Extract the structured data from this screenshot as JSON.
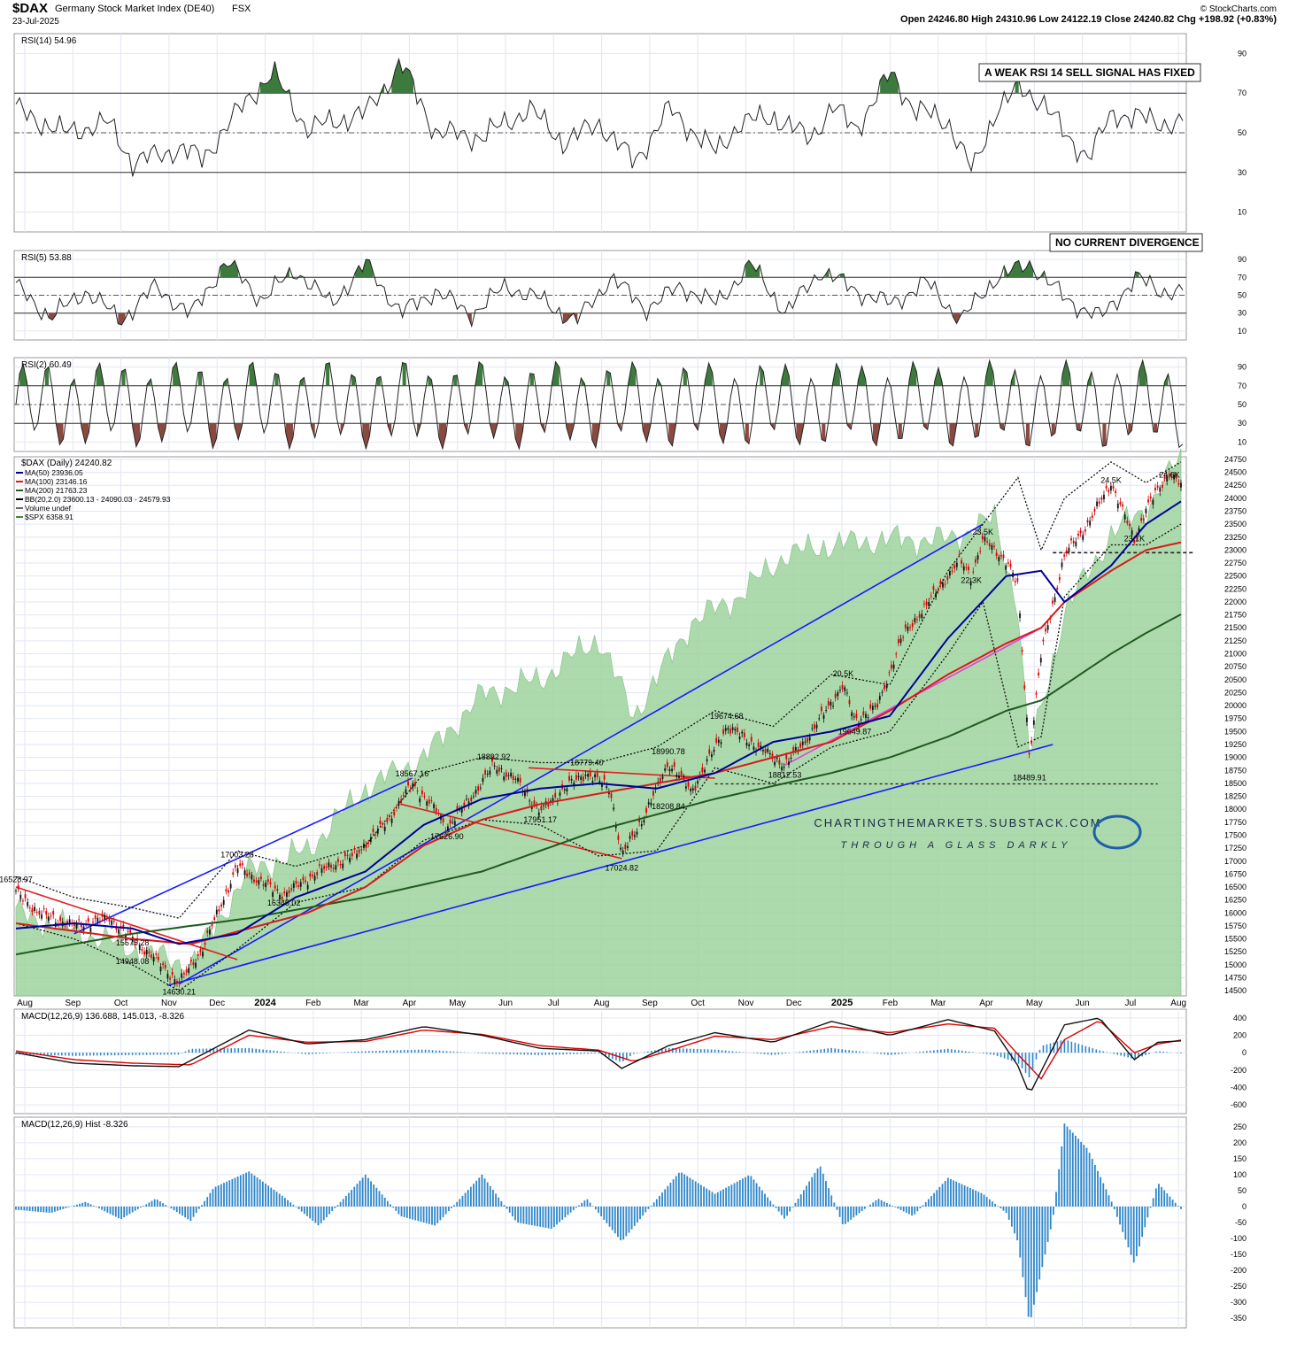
{
  "header": {
    "symbol": "$DAX",
    "name": "Germany Stock Market Index (DE40)",
    "exchange": "FSX",
    "date": "23-Jul-2025",
    "copyright": "© StockCharts.com",
    "ohlc": "Open 24246.80   High 24310.96   Low 24122.19   Close 24240.82   Chg +198.92 (+0.83%)"
  },
  "watermark": {
    "site": "CHARTINGTHEMARKETS.SUBSTACK.COM",
    "tagline": "THROUGH A GLASS DARKLY"
  },
  "colors": {
    "ma50": "#000099",
    "ma100": "#d81b1b",
    "ma200": "#1f5a1f",
    "spx_fill": "#9ed49e",
    "rsi_over": "#3d7a3d",
    "rsi_under": "#8b4a3f",
    "macd_hist": "#2e86c9",
    "trendline_blue": "#1a1aff",
    "trendline_magenta": "#e040e0"
  },
  "chart_data": [
    {
      "type": "line",
      "panel": "rsi14",
      "legend": "RSI(14) 54.96",
      "ylim": [
        0,
        100
      ],
      "yticks": [
        10,
        30,
        50,
        70,
        90
      ],
      "annotation": "A WEAK RSI 14 SELL SIGNAL HAS FIXED",
      "series": [
        {
          "name": "RSI(14)",
          "x": [
            0,
            0.04,
            0.08,
            0.1,
            0.14,
            0.16,
            0.2,
            0.22,
            0.25,
            0.3,
            0.33,
            0.36,
            0.4,
            0.44,
            0.47,
            0.5,
            0.53,
            0.56,
            0.6,
            0.62,
            0.65,
            0.68,
            0.7,
            0.72,
            0.75,
            0.77,
            0.8,
            0.82,
            0.84,
            0.86,
            0.88,
            0.9,
            0.92,
            0.94,
            0.96,
            0.98,
            1
          ],
          "values": [
            62,
            50,
            55,
            35,
            42,
            37,
            68,
            80,
            52,
            60,
            85,
            50,
            48,
            62,
            45,
            55,
            35,
            62,
            40,
            55,
            58,
            47,
            63,
            52,
            80,
            62,
            55,
            30,
            62,
            72,
            66,
            48,
            38,
            60,
            58,
            55,
            55
          ]
        }
      ]
    },
    {
      "type": "line",
      "panel": "rsi5",
      "legend": "RSI(5) 53.88",
      "ylim": [
        0,
        100
      ],
      "yticks": [
        10,
        30,
        50,
        70,
        90
      ],
      "annotation": "NO CURRENT DIVERGENCE",
      "series": [
        {
          "name": "RSI(5)",
          "x": [
            0,
            0.03,
            0.06,
            0.09,
            0.12,
            0.15,
            0.18,
            0.21,
            0.24,
            0.27,
            0.3,
            0.33,
            0.36,
            0.39,
            0.42,
            0.45,
            0.48,
            0.51,
            0.54,
            0.57,
            0.6,
            0.63,
            0.66,
            0.69,
            0.72,
            0.75,
            0.78,
            0.81,
            0.84,
            0.87,
            0.9,
            0.93,
            0.96,
            0.98,
            1
          ],
          "values": [
            60,
            25,
            55,
            22,
            60,
            28,
            88,
            45,
            78,
            40,
            85,
            30,
            55,
            28,
            60,
            45,
            20,
            70,
            35,
            60,
            40,
            85,
            30,
            78,
            55,
            40,
            65,
            22,
            70,
            85,
            45,
            25,
            70,
            55,
            54
          ]
        }
      ]
    },
    {
      "type": "line",
      "panel": "rsi2",
      "legend": "RSI(2) 60.49",
      "ylim": [
        0,
        100
      ],
      "yticks": [
        10,
        30,
        50,
        70,
        90
      ],
      "series": [
        {
          "name": "RSI(2)",
          "oscillating": true
        }
      ]
    },
    {
      "type": "line",
      "panel": "price",
      "title": "$DAX (Daily) 24240.82",
      "legend": [
        "MA(50) 23936.05",
        "MA(100) 23146.16",
        "MA(200) 21763.23",
        "BB(20,2.0) 23600.13 - 24090.03 - 24579.93",
        "Volume undef",
        "$SPX 6358.91"
      ],
      "ylim": [
        14400,
        24800
      ],
      "yticks": [
        14500,
        14750,
        15000,
        15250,
        15500,
        15750,
        16000,
        16250,
        16500,
        16750,
        17000,
        17250,
        17500,
        17750,
        18000,
        18250,
        18500,
        18750,
        19000,
        19250,
        19500,
        19750,
        20000,
        20250,
        20500,
        20750,
        21000,
        21250,
        21500,
        21750,
        22000,
        22250,
        22500,
        22750,
        23000,
        23250,
        23500,
        23750,
        24000,
        24250,
        24500,
        24750
      ],
      "x_labels": [
        "Aug",
        "Sep",
        "Oct",
        "Nov",
        "Dec",
        "2024",
        "Feb",
        "Mar",
        "Apr",
        "May",
        "Jun",
        "Jul",
        "Aug",
        "Sep",
        "Oct",
        "Nov",
        "Dec",
        "2025",
        "Feb",
        "Mar",
        "Apr",
        "May",
        "Jun",
        "Jul",
        "Aug"
      ],
      "price_labels": [
        {
          "t": 0.0,
          "v": 16528.97,
          "text": "16528.97"
        },
        {
          "t": 0.1,
          "v": 15575.28,
          "text": "15575.28"
        },
        {
          "t": 0.1,
          "v": 14948.08,
          "text": "14948.08"
        },
        {
          "t": 0.14,
          "v": 14630.21,
          "text": "14630.21"
        },
        {
          "t": 0.19,
          "v": 17003.28,
          "text": "17003.28"
        },
        {
          "t": 0.23,
          "v": 16345.02,
          "text": "16345.02"
        },
        {
          "t": 0.34,
          "v": 18567.16,
          "text": "18567.16"
        },
        {
          "t": 0.37,
          "v": 17626.9,
          "text": "17626.90"
        },
        {
          "t": 0.41,
          "v": 18892.92,
          "text": "18892.92"
        },
        {
          "t": 0.45,
          "v": 17951.17,
          "text": "17951.17"
        },
        {
          "t": 0.49,
          "v": 18779.4,
          "text": "18779.40"
        },
        {
          "t": 0.52,
          "v": 17024.82,
          "text": "17024.82"
        },
        {
          "t": 0.56,
          "v": 18990.78,
          "text": "18990.78"
        },
        {
          "t": 0.56,
          "v": 18208.84,
          "text": "18208.84"
        },
        {
          "t": 0.61,
          "v": 19674.68,
          "text": "19674.68"
        },
        {
          "t": 0.66,
          "v": 18812.53,
          "text": "18812.53"
        },
        {
          "t": 0.71,
          "v": 20500,
          "text": "20.5K"
        },
        {
          "t": 0.72,
          "v": 19649.87,
          "text": "19649.87"
        },
        {
          "t": 0.82,
          "v": 22300,
          "text": "22.3K"
        },
        {
          "t": 0.83,
          "v": 23500,
          "text": "23.5K"
        },
        {
          "t": 0.87,
          "v": 18489.91,
          "text": "18489.91"
        },
        {
          "t": 0.94,
          "v": 24500,
          "text": "24.5K"
        },
        {
          "t": 0.96,
          "v": 23100,
          "text": "23.1K"
        },
        {
          "t": 0.99,
          "v": 24600,
          "text": "24.6K"
        }
      ],
      "series": [
        {
          "name": "$DAX",
          "t": [
            0,
            0.02,
            0.05,
            0.08,
            0.1,
            0.12,
            0.14,
            0.16,
            0.19,
            0.21,
            0.23,
            0.26,
            0.29,
            0.32,
            0.34,
            0.36,
            0.37,
            0.39,
            0.41,
            0.43,
            0.45,
            0.47,
            0.49,
            0.51,
            0.52,
            0.54,
            0.56,
            0.58,
            0.61,
            0.63,
            0.66,
            0.68,
            0.71,
            0.72,
            0.74,
            0.76,
            0.79,
            0.81,
            0.82,
            0.83,
            0.85,
            0.86,
            0.87,
            0.88,
            0.9,
            0.92,
            0.94,
            0.96,
            0.97,
            0.99,
            1
          ],
          "values": [
            16400,
            16000,
            15750,
            15900,
            15500,
            15100,
            14650,
            15300,
            16900,
            16600,
            16350,
            16800,
            17100,
            17800,
            18500,
            18000,
            17650,
            18200,
            18850,
            18550,
            17950,
            18400,
            18700,
            18400,
            17100,
            17900,
            18900,
            18350,
            19600,
            19300,
            18850,
            19400,
            20400,
            19700,
            20000,
            21300,
            22200,
            22800,
            22500,
            23200,
            22800,
            22300,
            19000,
            21000,
            22900,
            23500,
            24300,
            23200,
            23800,
            24500,
            24240
          ]
        },
        {
          "name": "MA(50)",
          "t": [
            0,
            0.05,
            0.1,
            0.14,
            0.19,
            0.24,
            0.3,
            0.35,
            0.4,
            0.45,
            0.5,
            0.55,
            0.6,
            0.65,
            0.7,
            0.75,
            0.8,
            0.85,
            0.88,
            0.9,
            0.94,
            0.97,
            1
          ],
          "values": [
            15700,
            15800,
            15700,
            15400,
            15600,
            16300,
            16800,
            17700,
            18200,
            18400,
            18500,
            18400,
            18700,
            19300,
            19500,
            19800,
            21300,
            22500,
            22600,
            22000,
            22700,
            23500,
            23940
          ]
        },
        {
          "name": "MA(100)",
          "t": [
            0,
            0.1,
            0.15,
            0.2,
            0.25,
            0.3,
            0.35,
            0.4,
            0.45,
            0.5,
            0.55,
            0.6,
            0.65,
            0.7,
            0.75,
            0.8,
            0.85,
            0.88,
            0.9,
            0.94,
            0.97,
            1
          ],
          "values": [
            15800,
            15500,
            15400,
            15700,
            16000,
            16500,
            17300,
            17800,
            18100,
            18300,
            18500,
            18700,
            19000,
            19300,
            19900,
            20600,
            21200,
            21500,
            22000,
            22600,
            23000,
            23150
          ]
        },
        {
          "name": "MA(200)",
          "t": [
            0,
            0.1,
            0.2,
            0.3,
            0.4,
            0.5,
            0.6,
            0.7,
            0.75,
            0.8,
            0.85,
            0.88,
            0.9,
            0.94,
            0.97,
            1
          ],
          "values": [
            15200,
            15600,
            15900,
            16300,
            16800,
            17600,
            18200,
            18700,
            19000,
            19400,
            19900,
            20100,
            20400,
            21000,
            21400,
            21760
          ]
        },
        {
          "name": "BB upper",
          "t": [
            0,
            0.05,
            0.1,
            0.14,
            0.19,
            0.24,
            0.3,
            0.35,
            0.4,
            0.45,
            0.5,
            0.55,
            0.6,
            0.65,
            0.7,
            0.75,
            0.8,
            0.83,
            0.86,
            0.88,
            0.9,
            0.94,
            0.97,
            1
          ],
          "values": [
            16700,
            16300,
            16100,
            15900,
            17200,
            16900,
            17300,
            18700,
            19000,
            18900,
            18900,
            19200,
            19900,
            19600,
            20600,
            20400,
            22600,
            23500,
            24400,
            23000,
            24000,
            24700,
            24300,
            24700
          ]
        },
        {
          "name": "BB lower",
          "t": [
            0,
            0.05,
            0.1,
            0.14,
            0.19,
            0.24,
            0.3,
            0.35,
            0.4,
            0.45,
            0.5,
            0.55,
            0.6,
            0.65,
            0.7,
            0.75,
            0.8,
            0.83,
            0.86,
            0.88,
            0.9,
            0.94,
            0.97,
            1
          ],
          "values": [
            15800,
            15500,
            15000,
            14500,
            15300,
            16200,
            16500,
            17400,
            17800,
            17700,
            17100,
            17200,
            18800,
            18500,
            19200,
            19500,
            21000,
            22000,
            19200,
            19400,
            22100,
            23100,
            23100,
            23500
          ]
        },
        {
          "name": "$SPX",
          "t": [
            0,
            0.1,
            0.15,
            0.2,
            0.25,
            0.3,
            0.35,
            0.4,
            0.45,
            0.5,
            0.53,
            0.58,
            0.62,
            0.66,
            0.7,
            0.75,
            0.8,
            0.84,
            0.86,
            0.87,
            0.9,
            0.94,
            0.97,
            1
          ],
          "values": [
            16000,
            15300,
            15000,
            16800,
            17200,
            18400,
            19000,
            20200,
            20500,
            21300,
            19800,
            21600,
            22100,
            22900,
            23100,
            23200,
            23200,
            23600,
            21900,
            19000,
            21800,
            23300,
            23800,
            24800
          ]
        }
      ]
    },
    {
      "type": "line",
      "panel": "macd",
      "legend": "MACD(12,26,9) 136.688, 145.013, -8.326",
      "ylim": [
        -700,
        500
      ],
      "yticks": [
        -600,
        -400,
        -200,
        0,
        200,
        400
      ],
      "series": [
        {
          "name": "MACD",
          "t": [
            0,
            0.05,
            0.1,
            0.14,
            0.2,
            0.25,
            0.3,
            0.35,
            0.4,
            0.45,
            0.5,
            0.52,
            0.56,
            0.6,
            0.65,
            0.7,
            0.75,
            0.8,
            0.84,
            0.86,
            0.87,
            0.9,
            0.93,
            0.96,
            0.98,
            1
          ],
          "values": [
            0,
            -120,
            -150,
            -160,
            260,
            100,
            150,
            300,
            200,
            50,
            20,
            -180,
            80,
            230,
            120,
            360,
            200,
            380,
            250,
            -150,
            -480,
            320,
            400,
            -80,
            120,
            136
          ]
        },
        {
          "name": "Signal",
          "t": [
            0,
            0.05,
            0.1,
            0.15,
            0.2,
            0.25,
            0.3,
            0.35,
            0.4,
            0.45,
            0.5,
            0.53,
            0.56,
            0.6,
            0.65,
            0.7,
            0.75,
            0.8,
            0.84,
            0.86,
            0.88,
            0.9,
            0.93,
            0.96,
            0.98,
            1
          ],
          "values": [
            20,
            -80,
            -120,
            -140,
            200,
            120,
            130,
            260,
            210,
            80,
            30,
            -100,
            20,
            190,
            150,
            300,
            230,
            330,
            280,
            -20,
            -300,
            150,
            370,
            0,
            100,
            145
          ]
        }
      ]
    },
    {
      "type": "bar",
      "panel": "macd_hist",
      "legend": "MACD(12,26,9) Hist -8.326",
      "ylim": [
        -380,
        280
      ],
      "yticks": [
        -350,
        -300,
        -250,
        -200,
        -150,
        -100,
        -50,
        0,
        50,
        100,
        150,
        200,
        250
      ],
      "series": [
        {
          "name": "Hist",
          "t": [
            0,
            0.03,
            0.06,
            0.09,
            0.12,
            0.15,
            0.17,
            0.2,
            0.23,
            0.26,
            0.3,
            0.33,
            0.36,
            0.4,
            0.43,
            0.46,
            0.49,
            0.52,
            0.54,
            0.57,
            0.6,
            0.63,
            0.66,
            0.69,
            0.71,
            0.74,
            0.77,
            0.8,
            0.83,
            0.85,
            0.86,
            0.87,
            0.89,
            0.9,
            0.92,
            0.94,
            0.96,
            0.98,
            1
          ],
          "values": [
            -10,
            -20,
            15,
            -40,
            25,
            -45,
            60,
            110,
            30,
            -60,
            100,
            -30,
            -60,
            100,
            -50,
            -70,
            25,
            -110,
            -20,
            110,
            40,
            100,
            -40,
            130,
            -60,
            25,
            -30,
            90,
            40,
            -20,
            -110,
            -370,
            -40,
            260,
            180,
            20,
            -180,
            75,
            -8
          ]
        }
      ]
    }
  ]
}
